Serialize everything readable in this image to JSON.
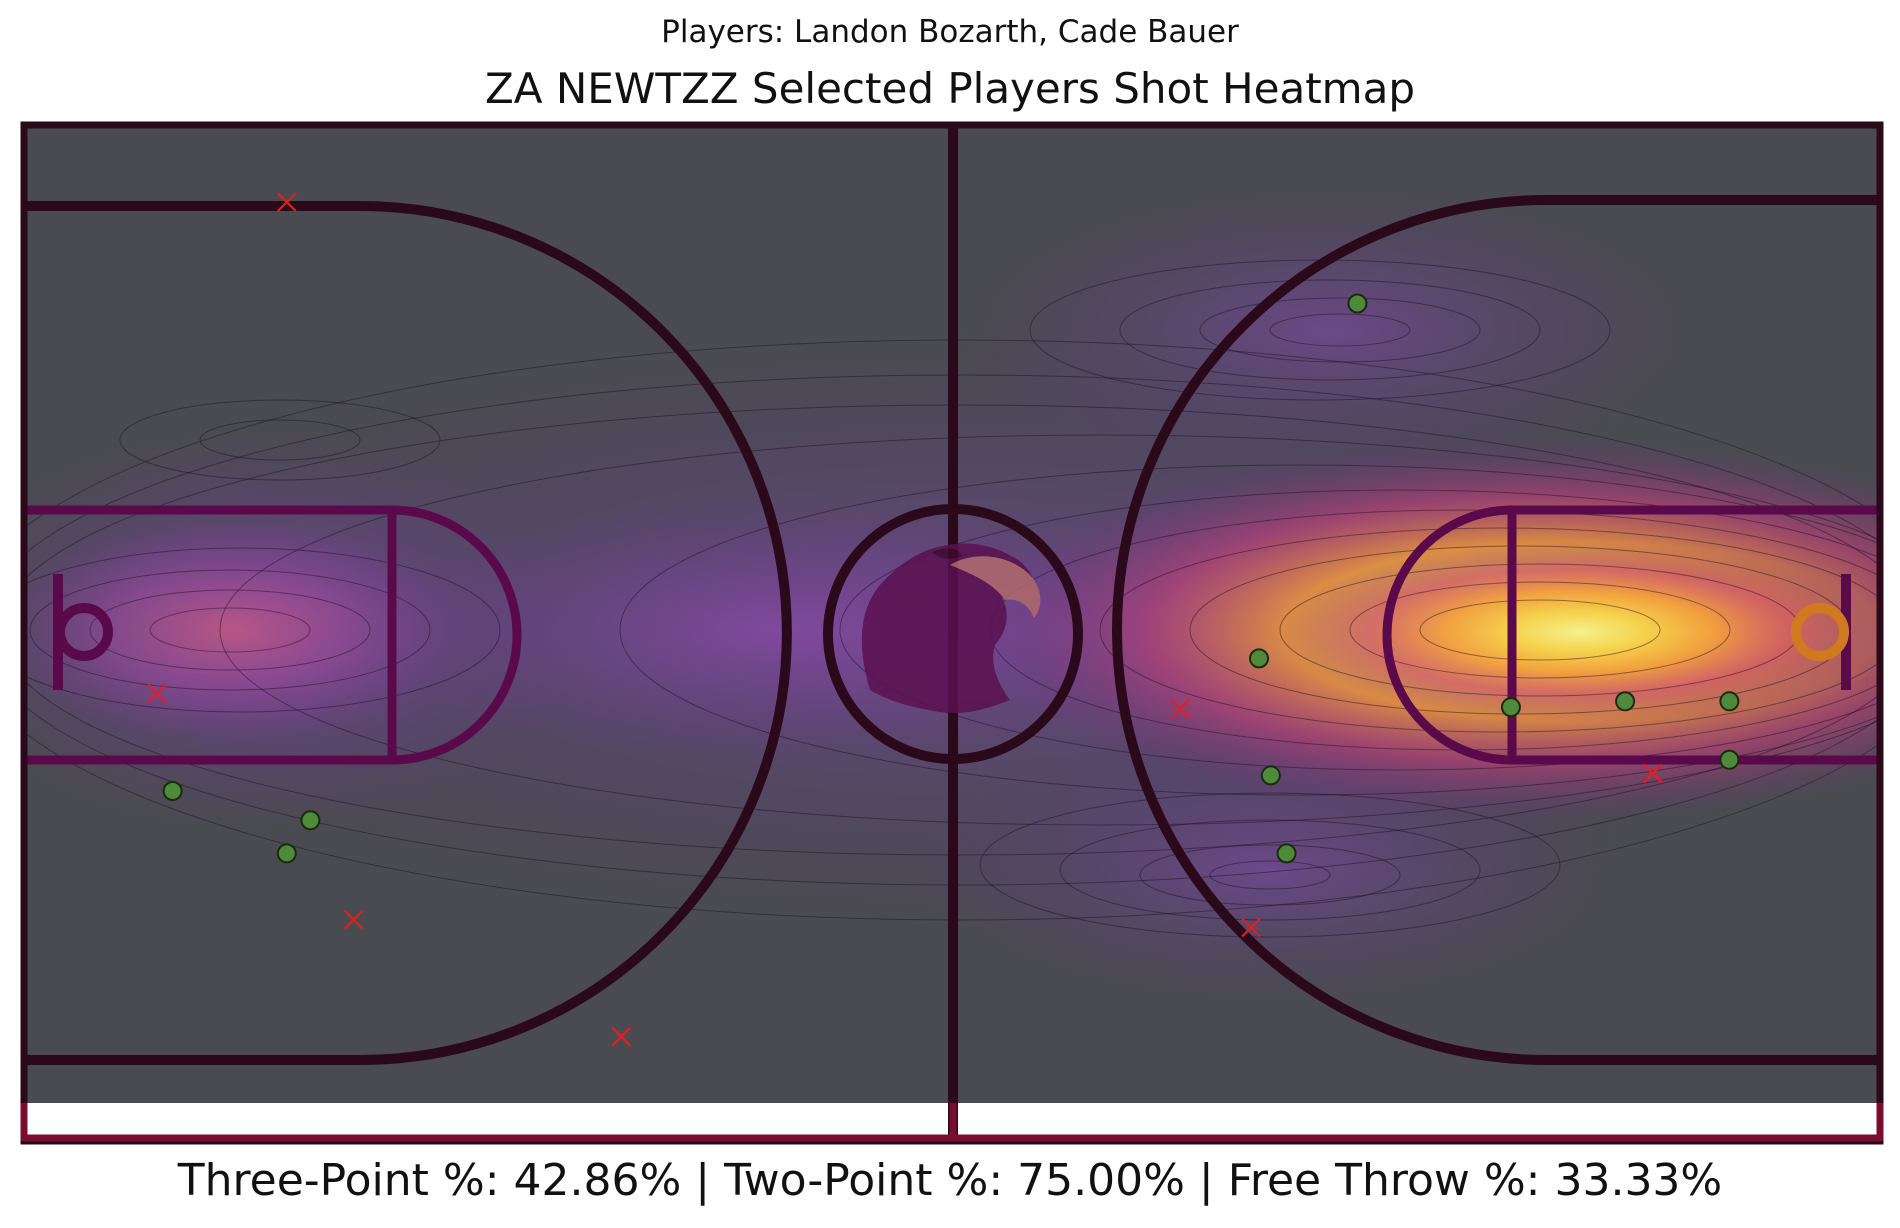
{
  "subtitle": "Players: Landon Bozarth, Cade Bauer",
  "title": "ZA NEWTZZ Selected Players Shot Heatmap",
  "footer": "Three-Point %: 42.86% | Two-Point %: 75.00% | Free Throw %: 33.33%",
  "colors": {
    "court_bg": "#4a4b50",
    "court_lines": "#2a0a1a",
    "court_border": "#7a0c2e",
    "made_fill": "#4e8a3a",
    "made_stroke": "#1a2a10",
    "miss": "#e02020"
  },
  "chart_data": {
    "type": "scatter",
    "title": "ZA NEWTZZ Selected Players Shot Heatmap",
    "subtitle": "Players: Landon Bozarth, Cade Bauer",
    "xlim": [
      0,
      94
    ],
    "ylim": [
      0,
      50
    ],
    "grid": false,
    "legend": "none",
    "series": [
      {
        "result": "made",
        "marker": "circle",
        "points": [
          [
            13.2,
            12.8
          ],
          [
            14.4,
            14.5
          ],
          [
            7.4,
            16.0
          ],
          [
            67.6,
            41.0
          ],
          [
            62.6,
            22.8
          ],
          [
            63.2,
            16.8
          ],
          [
            64.0,
            12.8
          ],
          [
            75.4,
            20.3
          ],
          [
            81.2,
            20.6
          ],
          [
            86.5,
            20.6
          ],
          [
            86.5,
            17.6
          ]
        ]
      },
      {
        "result": "missed",
        "marker": "x",
        "points": [
          [
            13.2,
            46.2
          ],
          [
            6.6,
            21.0
          ],
          [
            16.6,
            9.4
          ],
          [
            30.2,
            3.4
          ],
          [
            58.6,
            20.2
          ],
          [
            62.2,
            9.0
          ],
          [
            82.6,
            16.9
          ]
        ]
      }
    ],
    "heatmap": {
      "colormap": "plasma",
      "peak": [
        80.0,
        18.0
      ]
    },
    "percentages": {
      "three_point": "42.86%",
      "two_point": "75.00%",
      "free_throw": "33.33%"
    }
  }
}
